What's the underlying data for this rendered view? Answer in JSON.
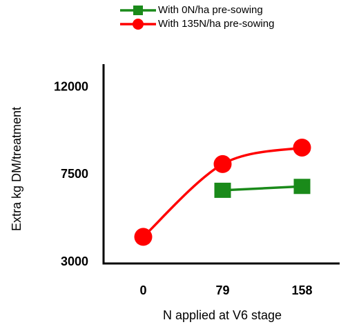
{
  "chart_data": {
    "type": "line",
    "categories": [
      "0",
      "79",
      "158"
    ],
    "series": [
      {
        "name": "With 0N/ha pre-sowing",
        "color": "#1a8a1a",
        "marker": "square",
        "values": [
          null,
          6700,
          6900
        ]
      },
      {
        "name": "With 135N/ha pre-sowing",
        "color": "#ff0000",
        "marker": "circle",
        "values": [
          4300,
          8050,
          8900
        ]
      }
    ],
    "x_label": "N applied at V6 stage",
    "y_label": "Extra kg DM/treatment",
    "ylim": [
      3000,
      13200
    ],
    "yticks": [
      3000,
      7500,
      12000
    ],
    "grid": false
  }
}
